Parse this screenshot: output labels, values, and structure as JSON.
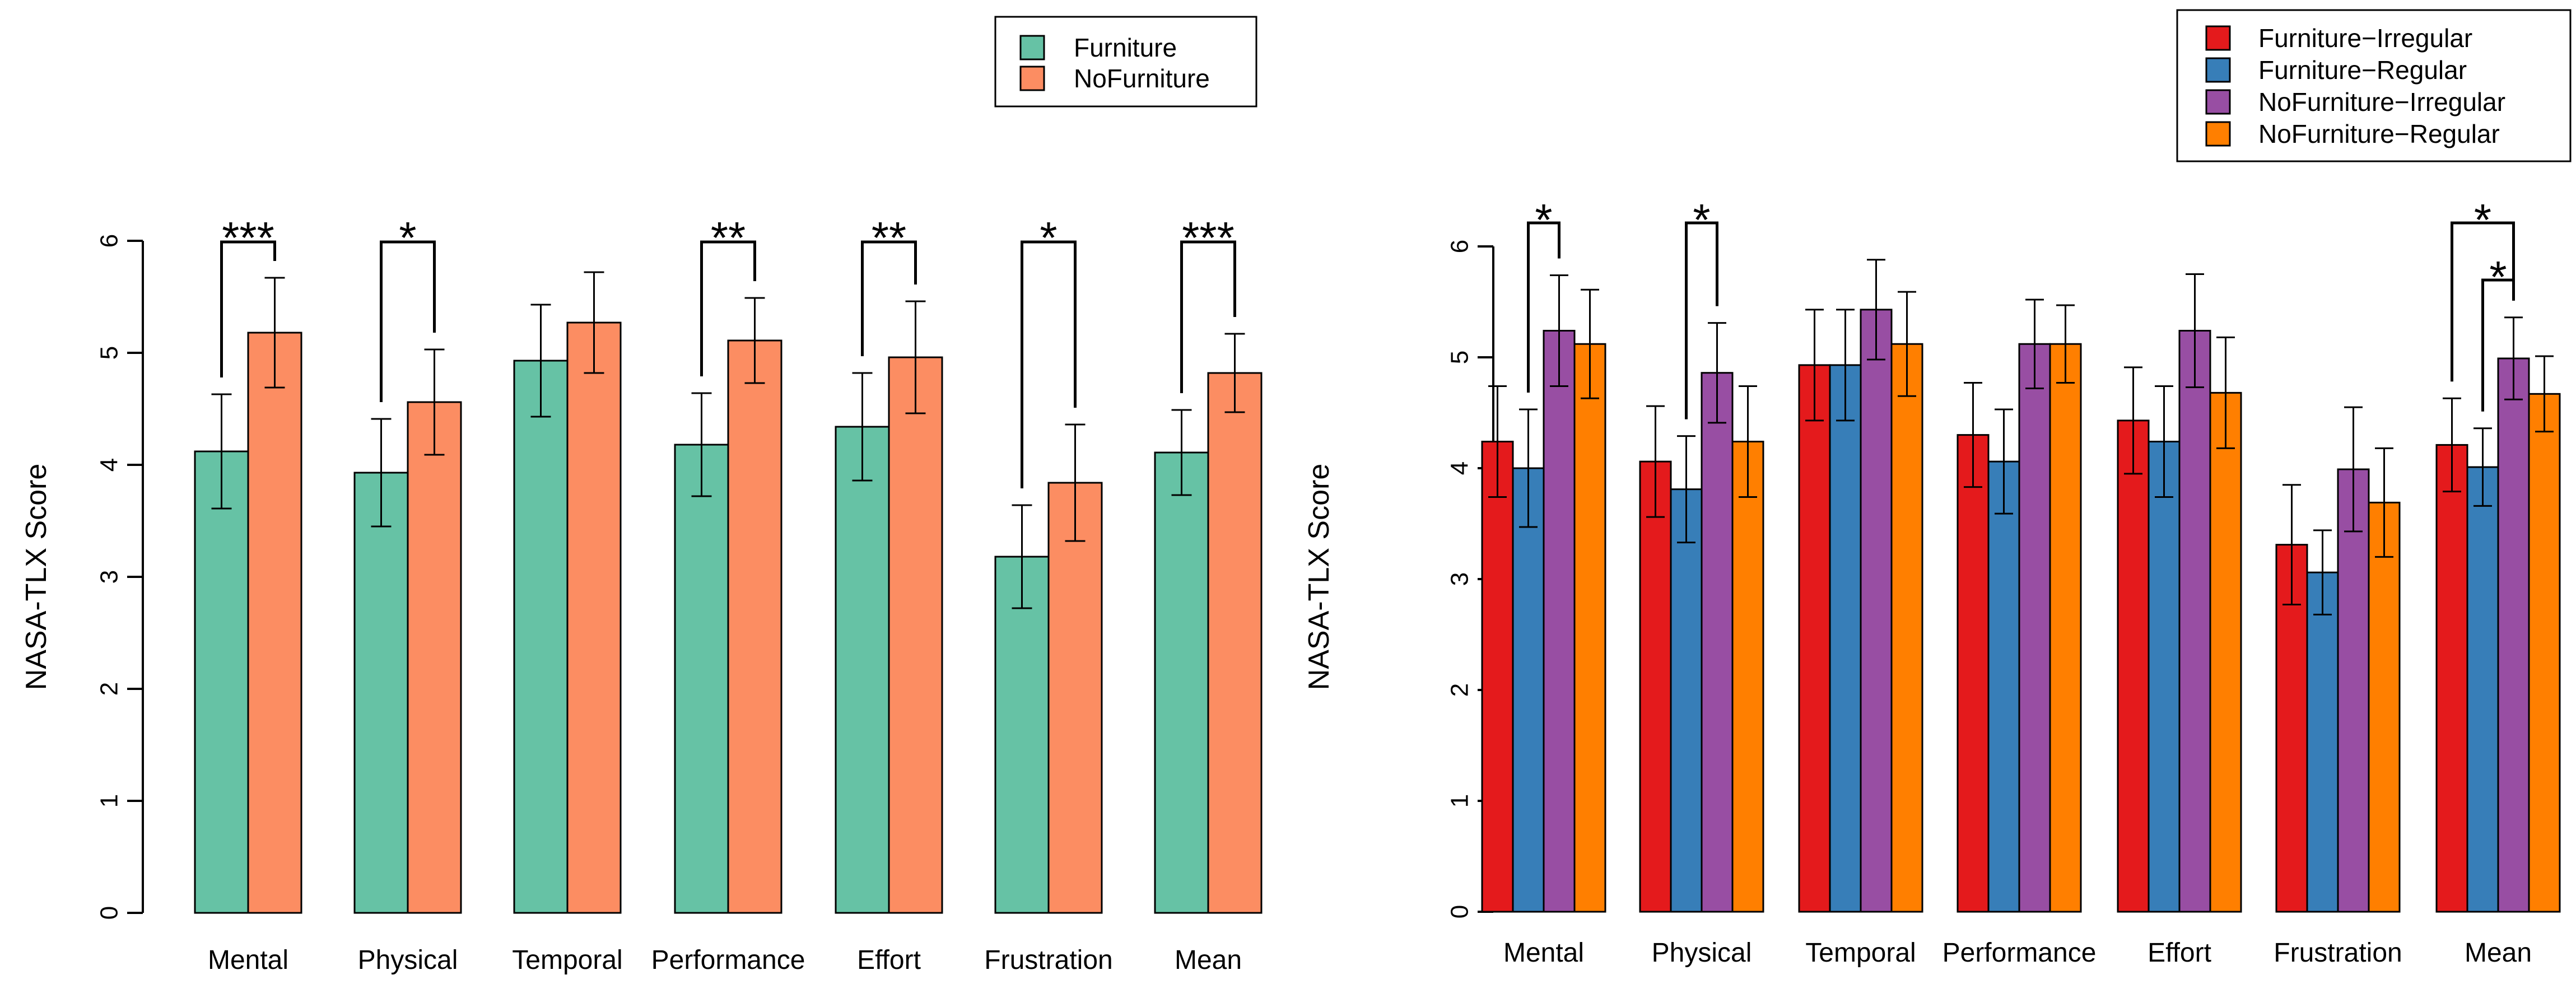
{
  "chart_data": [
    {
      "type": "bar",
      "ylabel": "NASA-TLX Score",
      "ylim": [
        0,
        6
      ],
      "yticks": [
        "0",
        "1",
        "2",
        "3",
        "4",
        "5",
        "6"
      ],
      "categories": [
        "Mental",
        "Physical",
        "Temporal",
        "Performance",
        "Effort",
        "Frustration",
        "Mean"
      ],
      "series": [
        {
          "name": "Furniture",
          "color": "#66c2a5",
          "values": [
            4.12,
            3.93,
            4.93,
            4.18,
            4.34,
            3.18,
            4.11
          ],
          "err": [
            0.51,
            0.48,
            0.5,
            0.46,
            0.48,
            0.46,
            0.38
          ]
        },
        {
          "name": "NoFurniture",
          "color": "#fc8d62",
          "values": [
            5.18,
            4.56,
            5.27,
            5.11,
            4.96,
            3.84,
            4.82
          ],
          "err": [
            0.49,
            0.47,
            0.45,
            0.38,
            0.5,
            0.52,
            0.35
          ]
        }
      ],
      "significance": [
        {
          "category": 0,
          "from": 0,
          "to": 1,
          "label": "***"
        },
        {
          "category": 1,
          "from": 0,
          "to": 1,
          "label": "*"
        },
        {
          "category": 3,
          "from": 0,
          "to": 1,
          "label": "**"
        },
        {
          "category": 4,
          "from": 0,
          "to": 1,
          "label": "**"
        },
        {
          "category": 5,
          "from": 0,
          "to": 1,
          "label": "*"
        },
        {
          "category": 6,
          "from": 0,
          "to": 1,
          "label": "***"
        }
      ],
      "legend": "top-right",
      "grid": false
    },
    {
      "type": "bar",
      "ylabel": "NASA-TLX Score",
      "ylim": [
        0,
        6
      ],
      "yticks": [
        "0",
        "1",
        "2",
        "3",
        "4",
        "5",
        "6"
      ],
      "categories": [
        "Mental",
        "Physical",
        "Temporal",
        "Performance",
        "Effort",
        "Frustration",
        "Mean"
      ],
      "series": [
        {
          "name": "Furniture−Irregular",
          "color": "#e41a1c",
          "values": [
            4.24,
            4.06,
            4.93,
            4.3,
            4.43,
            3.31,
            4.21
          ],
          "err": [
            0.5,
            0.5,
            0.5,
            0.47,
            0.48,
            0.54,
            0.42
          ]
        },
        {
          "name": "Furniture−Regular",
          "color": "#377eb8",
          "values": [
            4.0,
            3.81,
            4.93,
            4.06,
            4.24,
            3.06,
            4.01
          ],
          "err": [
            0.53,
            0.48,
            0.5,
            0.47,
            0.5,
            0.38,
            0.35
          ]
        },
        {
          "name": "NoFurniture−Irregular",
          "color": "#984ea3",
          "values": [
            5.24,
            4.86,
            5.43,
            5.12,
            5.24,
            3.99,
            4.99
          ],
          "err": [
            0.5,
            0.45,
            0.45,
            0.4,
            0.51,
            0.56,
            0.37
          ]
        },
        {
          "name": "NoFurniture−Regular",
          "color": "#ff7f00",
          "values": [
            5.12,
            4.24,
            5.12,
            5.12,
            4.68,
            3.69,
            4.67
          ],
          "err": [
            0.49,
            0.5,
            0.47,
            0.35,
            0.5,
            0.49,
            0.34
          ]
        }
      ],
      "significance": [
        {
          "category": 0,
          "from": 1,
          "to": 2,
          "label": "*"
        },
        {
          "category": 1,
          "from": 1,
          "to": 2,
          "label": "*"
        },
        {
          "category": 6,
          "from": 0,
          "to": 2,
          "label": "*"
        },
        {
          "category": 6,
          "from": 1,
          "to": 2,
          "label": "*"
        }
      ],
      "legend": "top-right",
      "grid": false
    }
  ]
}
